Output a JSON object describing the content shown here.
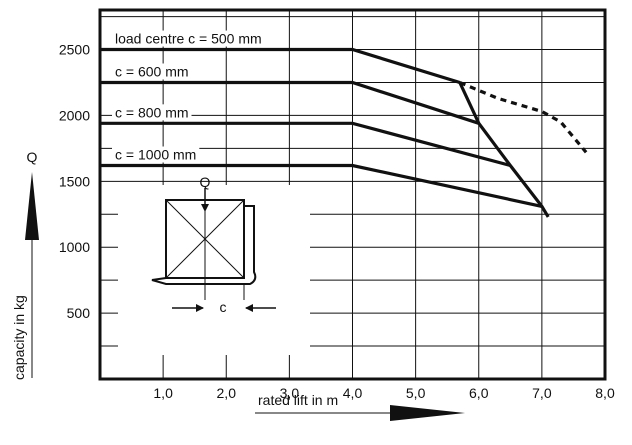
{
  "chart_data": {
    "type": "line",
    "xlabel": "rated lift in m",
    "ylabel": "capacity in kg",
    "y_symbol": "Q",
    "xlim": [
      0,
      8
    ],
    "ylim": [
      0,
      2800
    ],
    "x_ticks": [
      "1,0",
      "2,0",
      "3,0",
      "4,0",
      "5,0",
      "6,0",
      "7,0",
      "8,0"
    ],
    "x_tick_values": [
      1,
      2,
      3,
      4,
      5,
      6,
      7,
      8
    ],
    "y_ticks": [
      "500",
      "1000",
      "1500",
      "2000",
      "2500"
    ],
    "y_tick_values": [
      500,
      1000,
      1500,
      2000,
      2500
    ],
    "grid": true,
    "series": [
      {
        "name": "load centre c = 500 mm",
        "points": [
          [
            0,
            2500
          ],
          [
            4.0,
            2500
          ],
          [
            5.7,
            2250
          ]
        ]
      },
      {
        "name": "c = 600 mm",
        "points": [
          [
            0,
            2250
          ],
          [
            4.0,
            2250
          ],
          [
            6.0,
            1940
          ]
        ]
      },
      {
        "name": "c = 800 mm",
        "points": [
          [
            0,
            1940
          ],
          [
            4.0,
            1940
          ],
          [
            6.5,
            1620
          ]
        ]
      },
      {
        "name": "c = 1000 mm",
        "points": [
          [
            0,
            1620
          ],
          [
            4.0,
            1620
          ],
          [
            7.0,
            1310
          ]
        ]
      }
    ],
    "envelope": {
      "style": "solid",
      "points": [
        [
          5.7,
          2250
        ],
        [
          6.0,
          1940
        ],
        [
          6.5,
          1620
        ],
        [
          7.0,
          1310
        ],
        [
          7.1,
          1230
        ]
      ]
    },
    "dashed_series": {
      "style": "dashed",
      "points": [
        [
          5.7,
          2250
        ],
        [
          6.3,
          2130
        ],
        [
          7.0,
          2030
        ],
        [
          7.3,
          1950
        ],
        [
          7.7,
          1720
        ]
      ]
    },
    "inset": {
      "q_label": "Q",
      "c_label": "c"
    }
  }
}
